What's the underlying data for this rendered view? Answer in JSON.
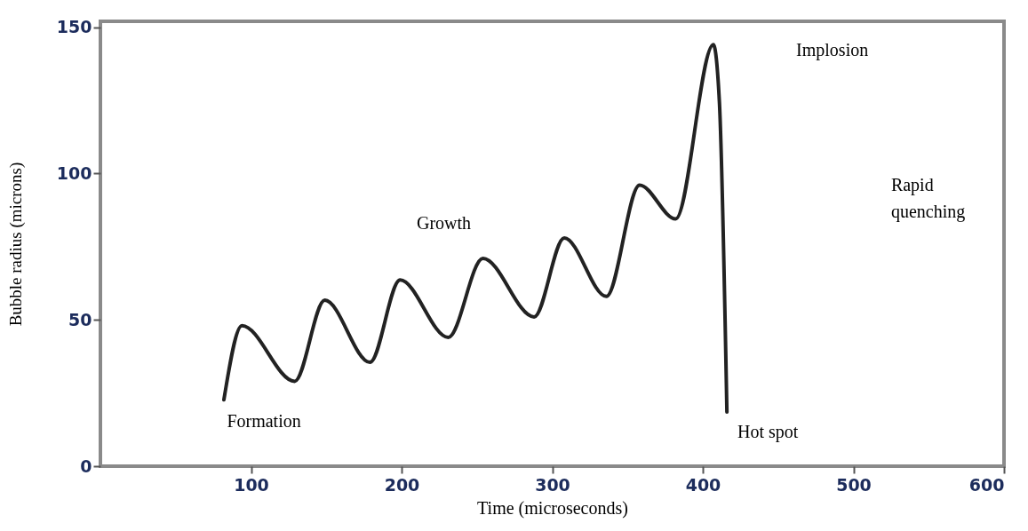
{
  "chart_data": {
    "type": "line",
    "xlabel": "Time (microseconds)",
    "ylabel": "Bubble radius (microns)",
    "x": [
      82,
      94,
      129,
      149,
      179,
      199,
      231,
      254,
      288,
      308,
      336,
      358,
      382,
      407,
      411,
      416
    ],
    "series": [
      {
        "color": "#222222",
        "values": [
          22.7,
          48,
          29,
          56.7,
          35.5,
          63.6,
          44,
          71,
          51,
          78,
          58,
          96,
          84.5,
          144,
          124.6,
          18.5
        ]
      }
    ],
    "xlim": [
      0,
      600
    ],
    "xticks": [
      100,
      200,
      300,
      400,
      500,
      600
    ],
    "ylim": [
      0,
      152
    ],
    "yticks": [
      0,
      50,
      100,
      150
    ],
    "grid": false,
    "annotations": [
      "Formation",
      "Growth",
      "Implosion",
      "Hot spot",
      "Rapid quenching"
    ]
  }
}
